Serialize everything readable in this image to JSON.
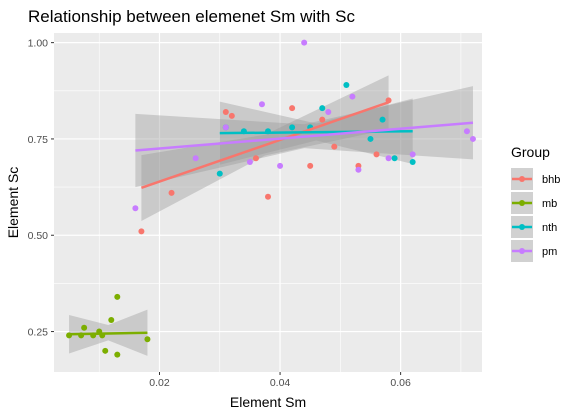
{
  "chart_data": {
    "type": "scatter",
    "title": "Relationship between elemenet Sm with Sc",
    "xlabel": "Element Sm",
    "ylabel": "Element Sc",
    "xlim": [
      0.0025,
      0.0735
    ],
    "ylim": [
      0.145,
      1.025
    ],
    "x_ticks": [
      {
        "value": 0.02,
        "label": "0.02"
      },
      {
        "value": 0.04,
        "label": "0.04"
      },
      {
        "value": 0.06,
        "label": "0.06"
      }
    ],
    "y_ticks": [
      {
        "value": 0.25,
        "label": "0.25"
      },
      {
        "value": 0.5,
        "label": "0.50"
      },
      {
        "value": 0.75,
        "label": "0.75"
      },
      {
        "value": 1.0,
        "label": "1.00"
      }
    ],
    "grid": true,
    "legend": {
      "title": "Group",
      "position": "right"
    },
    "series": [
      {
        "name": "bhb",
        "color": "#F8766D",
        "points": [
          [
            0.017,
            0.51
          ],
          [
            0.022,
            0.61
          ],
          [
            0.031,
            0.82
          ],
          [
            0.032,
            0.81
          ],
          [
            0.036,
            0.7
          ],
          [
            0.038,
            0.6
          ],
          [
            0.042,
            0.83
          ],
          [
            0.045,
            0.68
          ],
          [
            0.047,
            0.8
          ],
          [
            0.049,
            0.73
          ],
          [
            0.053,
            0.68
          ],
          [
            0.056,
            0.71
          ],
          [
            0.058,
            0.85
          ]
        ],
        "fit": {
          "x": [
            0.017,
            0.058
          ],
          "y": [
            0.623,
            0.845
          ]
        },
        "band": {
          "x": [
            0.017,
            0.0375,
            0.058
          ],
          "upper": [
            0.708,
            0.761,
            0.915
          ],
          "lower": [
            0.537,
            0.707,
            0.775
          ]
        }
      },
      {
        "name": "mb",
        "color": "#7CAE00",
        "points": [
          [
            0.005,
            0.24
          ],
          [
            0.007,
            0.24
          ],
          [
            0.0075,
            0.26
          ],
          [
            0.009,
            0.24
          ],
          [
            0.01,
            0.25
          ],
          [
            0.0105,
            0.24
          ],
          [
            0.011,
            0.2
          ],
          [
            0.012,
            0.28
          ],
          [
            0.013,
            0.34
          ],
          [
            0.013,
            0.19
          ],
          [
            0.018,
            0.23
          ]
        ],
        "fit": {
          "x": [
            0.005,
            0.018
          ],
          "y": [
            0.243,
            0.247
          ]
        },
        "band": {
          "x": [
            0.005,
            0.0115,
            0.018
          ],
          "upper": [
            0.293,
            0.267,
            0.307
          ],
          "lower": [
            0.193,
            0.227,
            0.187
          ]
        }
      },
      {
        "name": "nth",
        "color": "#00BFC4",
        "points": [
          [
            0.03,
            0.66
          ],
          [
            0.031,
            0.78
          ],
          [
            0.034,
            0.77
          ],
          [
            0.038,
            0.77
          ],
          [
            0.042,
            0.78
          ],
          [
            0.045,
            0.78
          ],
          [
            0.047,
            0.83
          ],
          [
            0.051,
            0.89
          ],
          [
            0.055,
            0.75
          ],
          [
            0.057,
            0.8
          ],
          [
            0.059,
            0.7
          ],
          [
            0.062,
            0.69
          ]
        ],
        "fit": {
          "x": [
            0.03,
            0.062
          ],
          "y": [
            0.765,
            0.77
          ]
        },
        "band": {
          "x": [
            0.03,
            0.046,
            0.062
          ],
          "upper": [
            0.847,
            0.79,
            0.855
          ],
          "lower": [
            0.683,
            0.746,
            0.685
          ]
        }
      },
      {
        "name": "pm",
        "color": "#C77CFF",
        "points": [
          [
            0.016,
            0.57
          ],
          [
            0.026,
            0.7
          ],
          [
            0.031,
            0.78
          ],
          [
            0.035,
            0.69
          ],
          [
            0.037,
            0.84
          ],
          [
            0.04,
            0.68
          ],
          [
            0.044,
            1.0
          ],
          [
            0.048,
            0.82
          ],
          [
            0.052,
            0.86
          ],
          [
            0.053,
            0.67
          ],
          [
            0.058,
            0.7
          ],
          [
            0.062,
            0.71
          ],
          [
            0.071,
            0.77
          ],
          [
            0.072,
            0.75
          ]
        ],
        "fit": {
          "x": [
            0.016,
            0.072
          ],
          "y": [
            0.72,
            0.792
          ]
        },
        "band": {
          "x": [
            0.016,
            0.044,
            0.072
          ],
          "upper": [
            0.815,
            0.788,
            0.887
          ],
          "lower": [
            0.625,
            0.726,
            0.697
          ]
        }
      }
    ]
  }
}
